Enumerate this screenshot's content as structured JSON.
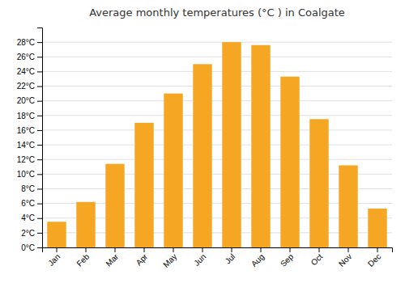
{
  "chart_data": {
    "type": "bar",
    "title": "Average monthly temperatures (°C ) in Coalgate",
    "categories": [
      "Jan",
      "Feb",
      "Mar",
      "Apr",
      "May",
      "Jun",
      "Jul",
      "Aug",
      "Sep",
      "Oct",
      "Nov",
      "Dec"
    ],
    "values": [
      3.5,
      6.2,
      11.4,
      17.0,
      21.0,
      25.0,
      28.0,
      27.6,
      23.3,
      17.5,
      11.2,
      5.3
    ],
    "color": "#F5A623",
    "ylim": [
      0,
      30
    ],
    "yticks": [
      {
        "value": 0,
        "label": "0°C"
      },
      {
        "value": 2,
        "label": "2°C"
      },
      {
        "value": 4,
        "label": "4°C"
      },
      {
        "value": 6,
        "label": "6°C"
      },
      {
        "value": 8,
        "label": "8°C"
      },
      {
        "value": 10,
        "label": "10°C"
      },
      {
        "value": 12,
        "label": "12°C"
      },
      {
        "value": 14,
        "label": "14°C"
      },
      {
        "value": 16,
        "label": "16°C"
      },
      {
        "value": 18,
        "label": "18°C"
      },
      {
        "value": 20,
        "label": "20°C"
      },
      {
        "value": 22,
        "label": "22°C"
      },
      {
        "value": 24,
        "label": "24°C"
      },
      {
        "value": 26,
        "label": "26°C"
      },
      {
        "value": 28,
        "label": "28°C"
      }
    ],
    "grid": true
  }
}
